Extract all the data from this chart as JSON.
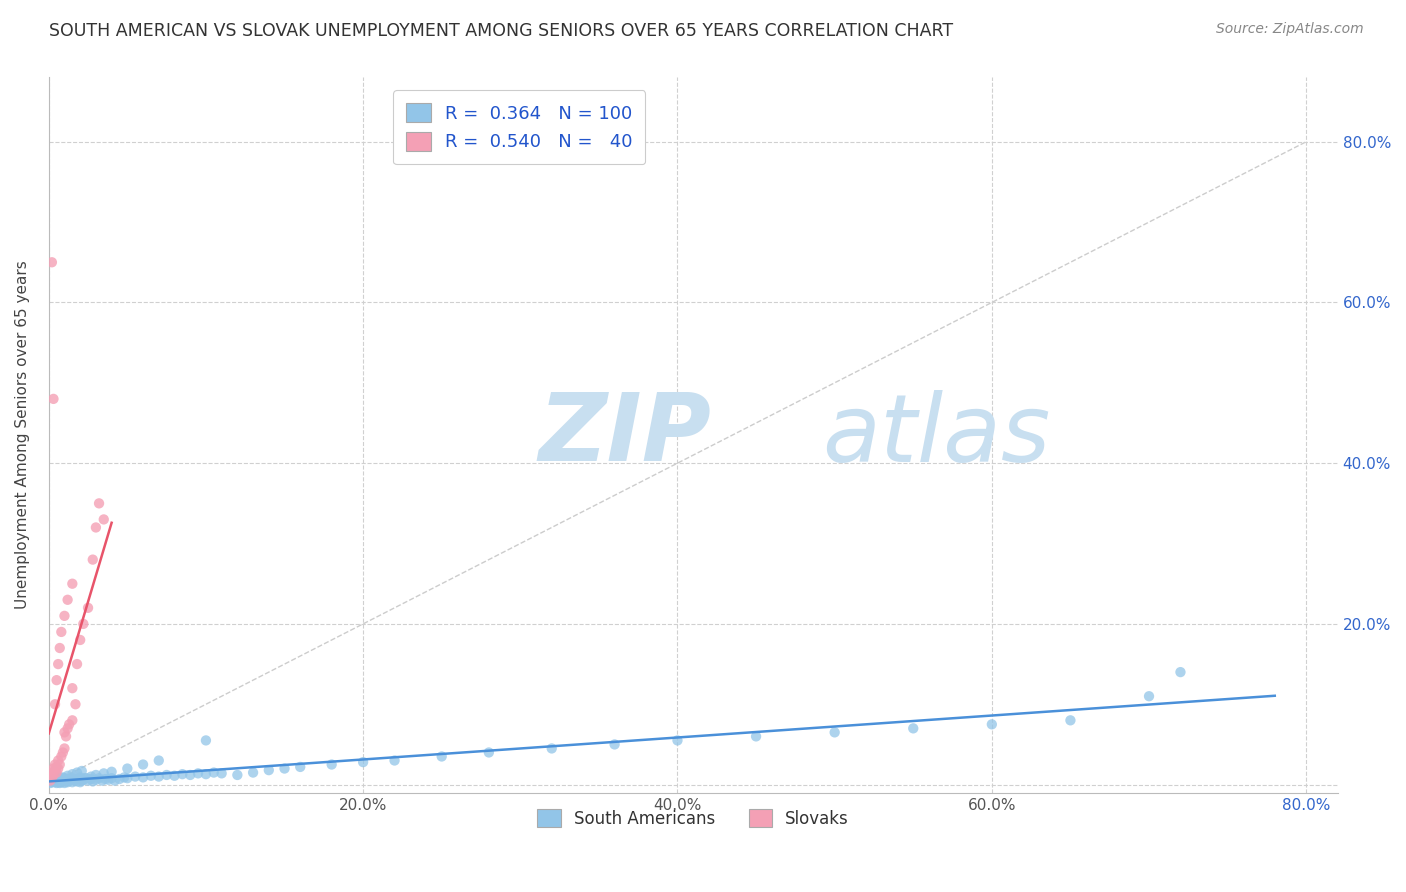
{
  "title": "SOUTH AMERICAN VS SLOVAK UNEMPLOYMENT AMONG SENIORS OVER 65 YEARS CORRELATION CHART",
  "source": "Source: ZipAtlas.com",
  "ylabel": "Unemployment Among Seniors over 65 years",
  "xlim": [
    0.0,
    0.82
  ],
  "ylim": [
    -0.01,
    0.88
  ],
  "xticks": [
    0.0,
    0.2,
    0.4,
    0.6,
    0.8
  ],
  "yticks": [
    0.0,
    0.2,
    0.4,
    0.6,
    0.8
  ],
  "xtick_labels": [
    "0.0%",
    "20.0%",
    "40.0%",
    "60.0%",
    "80.0%"
  ],
  "ytick_labels_left": [
    "",
    "",
    "",
    "",
    ""
  ],
  "ytick_labels_right": [
    "",
    "20.0%",
    "40.0%",
    "60.0%",
    "80.0%"
  ],
  "grid_color": "#d0d0d0",
  "diagonal_color": "#c0c0c0",
  "sa_color": "#92c5e8",
  "sk_color": "#f4a0b5",
  "sa_line_color": "#4a90d9",
  "sk_line_color": "#e8546a",
  "legend_box_color": "#92c5e8",
  "legend_box_color2": "#f4a0b5",
  "watermark_zip_color": "#c8dff0",
  "watermark_atlas_color": "#c8dff0",
  "background_color": "#ffffff",
  "sa_scatter_x": [
    0.001,
    0.002,
    0.002,
    0.003,
    0.003,
    0.004,
    0.004,
    0.005,
    0.005,
    0.005,
    0.006,
    0.006,
    0.007,
    0.007,
    0.007,
    0.008,
    0.008,
    0.009,
    0.009,
    0.01,
    0.01,
    0.01,
    0.011,
    0.011,
    0.012,
    0.012,
    0.013,
    0.014,
    0.015,
    0.015,
    0.016,
    0.017,
    0.018,
    0.019,
    0.02,
    0.02,
    0.021,
    0.022,
    0.023,
    0.025,
    0.027,
    0.028,
    0.03,
    0.032,
    0.034,
    0.036,
    0.038,
    0.04,
    0.042,
    0.045,
    0.048,
    0.05,
    0.055,
    0.06,
    0.065,
    0.07,
    0.075,
    0.08,
    0.085,
    0.09,
    0.095,
    0.1,
    0.105,
    0.11,
    0.12,
    0.13,
    0.14,
    0.15,
    0.16,
    0.18,
    0.2,
    0.22,
    0.25,
    0.28,
    0.32,
    0.36,
    0.4,
    0.45,
    0.5,
    0.55,
    0.6,
    0.65,
    0.7,
    0.72,
    0.003,
    0.006,
    0.009,
    0.012,
    0.015,
    0.018,
    0.021,
    0.024,
    0.027,
    0.03,
    0.035,
    0.04,
    0.05,
    0.06,
    0.07,
    0.1
  ],
  "sa_scatter_y": [
    0.002,
    0.003,
    0.005,
    0.004,
    0.006,
    0.003,
    0.007,
    0.002,
    0.004,
    0.006,
    0.003,
    0.008,
    0.002,
    0.005,
    0.009,
    0.003,
    0.007,
    0.004,
    0.006,
    0.002,
    0.005,
    0.008,
    0.004,
    0.007,
    0.003,
    0.006,
    0.005,
    0.007,
    0.003,
    0.008,
    0.005,
    0.006,
    0.004,
    0.007,
    0.003,
    0.009,
    0.005,
    0.006,
    0.008,
    0.005,
    0.007,
    0.004,
    0.006,
    0.008,
    0.005,
    0.007,
    0.006,
    0.008,
    0.005,
    0.007,
    0.009,
    0.008,
    0.01,
    0.009,
    0.011,
    0.01,
    0.012,
    0.011,
    0.013,
    0.012,
    0.014,
    0.013,
    0.015,
    0.014,
    0.012,
    0.015,
    0.018,
    0.02,
    0.022,
    0.025,
    0.028,
    0.03,
    0.035,
    0.04,
    0.045,
    0.05,
    0.055,
    0.06,
    0.065,
    0.07,
    0.075,
    0.08,
    0.11,
    0.14,
    0.005,
    0.007,
    0.009,
    0.011,
    0.013,
    0.015,
    0.017,
    0.008,
    0.01,
    0.012,
    0.014,
    0.016,
    0.02,
    0.025,
    0.03,
    0.055
  ],
  "sk_scatter_x": [
    0.001,
    0.002,
    0.002,
    0.003,
    0.003,
    0.004,
    0.004,
    0.005,
    0.005,
    0.006,
    0.006,
    0.007,
    0.008,
    0.009,
    0.01,
    0.01,
    0.011,
    0.012,
    0.013,
    0.015,
    0.015,
    0.017,
    0.018,
    0.02,
    0.022,
    0.025,
    0.028,
    0.03,
    0.032,
    0.035,
    0.002,
    0.003,
    0.004,
    0.005,
    0.006,
    0.007,
    0.008,
    0.01,
    0.012,
    0.015
  ],
  "sk_scatter_y": [
    0.005,
    0.008,
    0.015,
    0.012,
    0.02,
    0.018,
    0.025,
    0.015,
    0.022,
    0.02,
    0.03,
    0.025,
    0.035,
    0.04,
    0.045,
    0.065,
    0.06,
    0.07,
    0.075,
    0.08,
    0.12,
    0.1,
    0.15,
    0.18,
    0.2,
    0.22,
    0.28,
    0.32,
    0.35,
    0.33,
    0.65,
    0.48,
    0.1,
    0.13,
    0.15,
    0.17,
    0.19,
    0.21,
    0.23,
    0.25
  ]
}
